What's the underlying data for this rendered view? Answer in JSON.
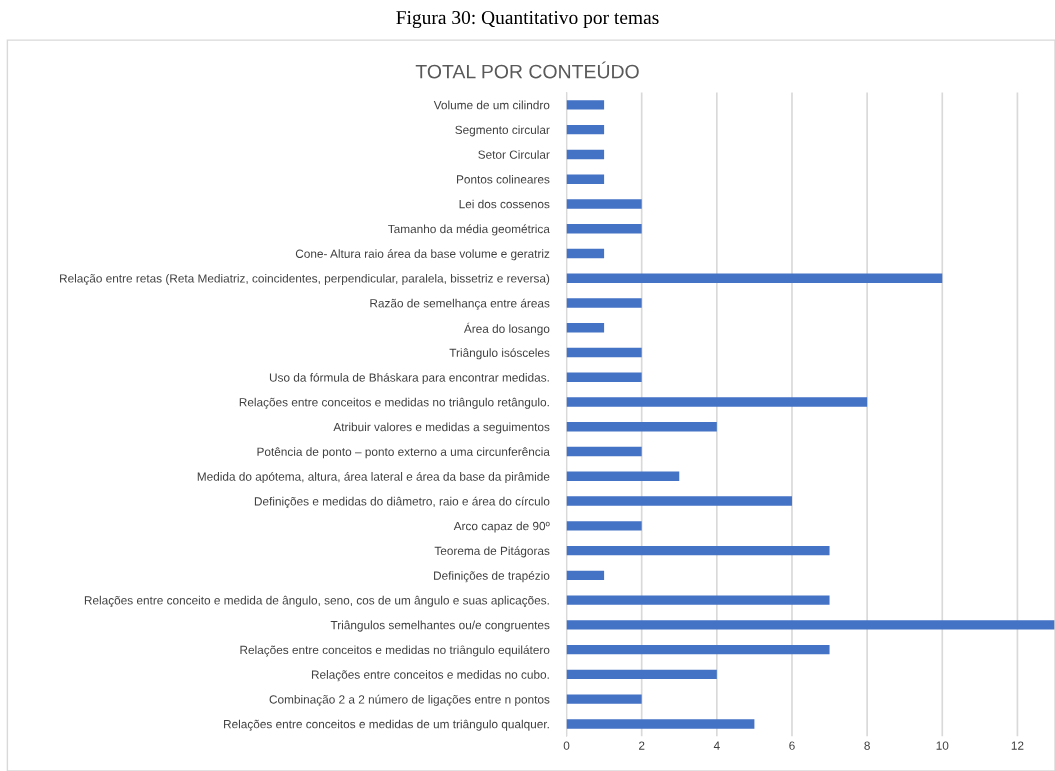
{
  "chart_data": {
    "type": "bar",
    "orientation": "horizontal",
    "title": "TOTAL POR CONTEÚDO",
    "subtitle": "Figura 30: Quantitativo por temas",
    "categories": [
      "Volume de um cilindro",
      "Segmento circular",
      "Setor Circular",
      "Pontos colineares",
      "Lei dos cossenos",
      "Tamanho da média geométrica",
      "Cone- Altura raio área da base volume e geratriz",
      "Relação entre retas (Reta Mediatriz, coincidentes, perpendicular, paralela, bissetriz e reversa)",
      "Razão de semelhança entre áreas",
      "Área do losango",
      "Triângulo isósceles",
      "Uso da fórmula de Bháskara para encontrar medidas.",
      "Relações entre conceitos e medidas no triângulo retângulo.",
      "Atribuir valores e medidas a seguimentos",
      "Potência de ponto – ponto externo a uma circunferência",
      "Medida do apótema, altura, área lateral e área da base da pirâmide",
      "Definições e medidas do diâmetro, raio e área do círculo",
      "Arco capaz de 90º",
      "Teorema de Pitágoras",
      "Definições de trapézio",
      "Relações entre conceito e medida de ângulo, seno, cos de um ângulo e suas aplicações.",
      "Triângulos semelhantes ou/e congruentes",
      "Relações entre conceitos e medidas no triângulo equilátero",
      "Relações entre conceitos e medidas no cubo.",
      "Combinação 2 a 2 número de ligações entre n pontos",
      "Relações entre conceitos e medidas de um triângulo qualquer."
    ],
    "values": [
      1,
      1,
      1,
      1,
      2,
      2,
      1,
      10,
      2,
      1,
      2,
      2,
      8,
      4,
      2,
      3,
      6,
      2,
      7,
      1,
      7,
      13,
      7,
      4,
      2,
      5
    ],
    "color": "#4472c4",
    "xlim": [
      0,
      13
    ],
    "xticks": [
      0,
      2,
      4,
      6,
      8,
      10,
      12
    ],
    "grid": "x",
    "legend": false
  }
}
